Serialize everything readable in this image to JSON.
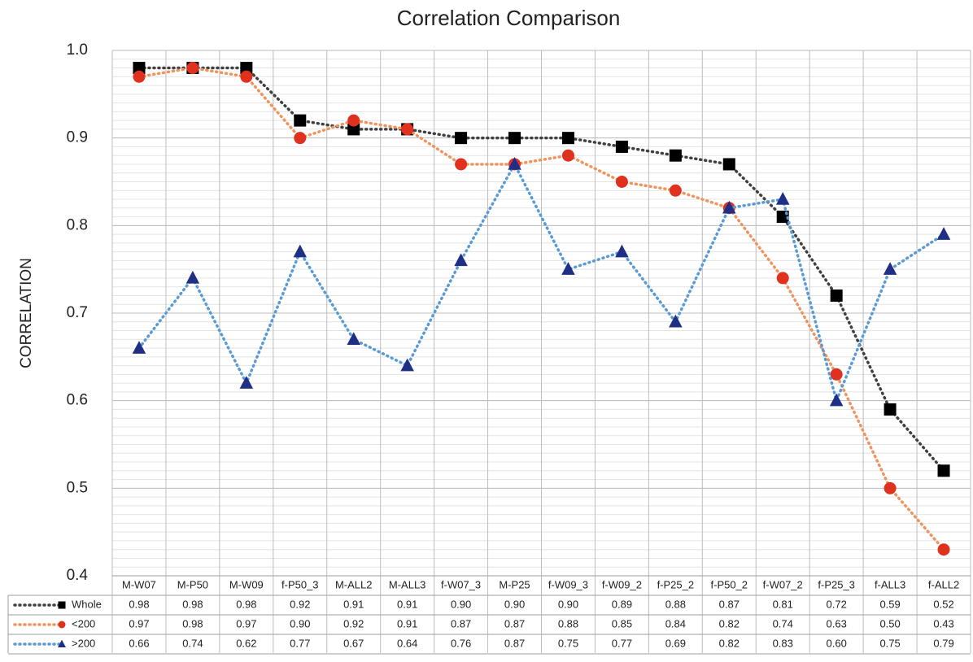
{
  "chart_data": {
    "type": "line",
    "title": "Correlation Comparison",
    "y_label": "CORRELATION",
    "categories": [
      "M-W07",
      "M-P50",
      "M-W09",
      "f-P50_3",
      "M-ALL2",
      "M-ALL3",
      "f-W07_3",
      "M-P25",
      "f-W09_3",
      "f-W09_2",
      "f-P25_2",
      "f-P50_2",
      "f-W07_2",
      "f-P25_3",
      "f-ALL3",
      "f-ALL2"
    ],
    "series": [
      {
        "name": "Whole",
        "color": "#404040",
        "marker_color": "#000000",
        "marker": "square",
        "values": [
          0.98,
          0.98,
          0.98,
          0.92,
          0.91,
          0.91,
          0.9,
          0.9,
          0.9,
          0.89,
          0.88,
          0.87,
          0.81,
          0.72,
          0.59,
          0.52
        ],
        "value_labels": [
          "0.98",
          "0.98",
          "0.98",
          "0.92",
          "0.91",
          "0.91",
          "0.90",
          "0.90",
          "0.90",
          "0.89",
          "0.88",
          "0.87",
          "0.81",
          "0.72",
          "0.59",
          "0.52"
        ]
      },
      {
        "name": "<200",
        "color": "#f0935e",
        "marker_color": "#e0301e",
        "marker": "circle",
        "values": [
          0.97,
          0.98,
          0.97,
          0.9,
          0.92,
          0.91,
          0.87,
          0.87,
          0.88,
          0.85,
          0.84,
          0.82,
          0.74,
          0.63,
          0.5,
          0.43
        ],
        "value_labels": [
          "0.97",
          "0.98",
          "0.97",
          "0.90",
          "0.92",
          "0.91",
          "0.87",
          "0.87",
          "0.88",
          "0.85",
          "0.84",
          "0.82",
          "0.74",
          "0.63",
          "0.50",
          "0.43"
        ]
      },
      {
        "name": ">200",
        "color": "#5b9bd5",
        "marker_color": "#1f2f86",
        "marker": "triangle",
        "values": [
          0.66,
          0.74,
          0.62,
          0.77,
          0.67,
          0.64,
          0.76,
          0.87,
          0.75,
          0.77,
          0.69,
          0.82,
          0.83,
          0.6,
          0.75,
          0.79
        ],
        "value_labels": [
          "0.66",
          "0.74",
          "0.62",
          "0.77",
          "0.67",
          "0.64",
          "0.76",
          "0.87",
          "0.75",
          "0.77",
          "0.69",
          "0.82",
          "0.83",
          "0.60",
          "0.75",
          "0.79"
        ]
      }
    ],
    "ylim": [
      0.4,
      1
    ],
    "yticks": [
      0.4,
      0.5,
      0.6,
      0.7,
      0.8,
      0.9,
      {
        "value": 1,
        "label": "1.0"
      }
    ],
    "grid": true,
    "minor_grid_step": 0.01,
    "data_table": true
  }
}
